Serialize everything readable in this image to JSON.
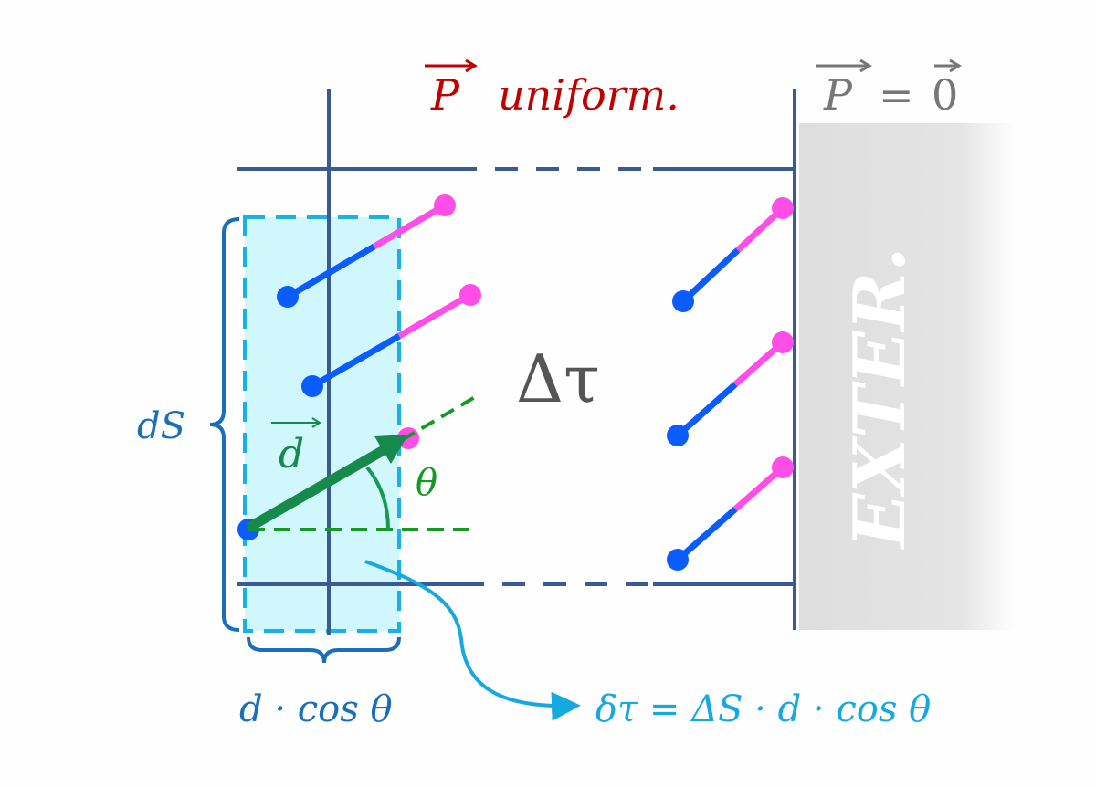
{
  "title": {
    "vector": "P",
    "text": "uniform."
  },
  "exterior_condition": {
    "lhs": "P",
    "eq": "=",
    "rhs": "0"
  },
  "exterior_label": "EXTER.",
  "volume_label": "Δτ",
  "vector_label": "d",
  "angle_label": "θ",
  "surface_label": "dS",
  "projection_label": "d · cos θ",
  "formula": "δτ = ΔS · d · cos θ",
  "colors": {
    "title": "#c00000",
    "frame": "#3a5a94",
    "dipole_negative": "#0a5cff",
    "dipole_positive": "#ff4de8",
    "vector": "#168a4a",
    "slab_fill": "#d0f7fb",
    "slab_border": "#1ab0e8",
    "brace": "#1a6fb8",
    "formula": "#16a8e0",
    "exterior": "#e0e0e0"
  }
}
